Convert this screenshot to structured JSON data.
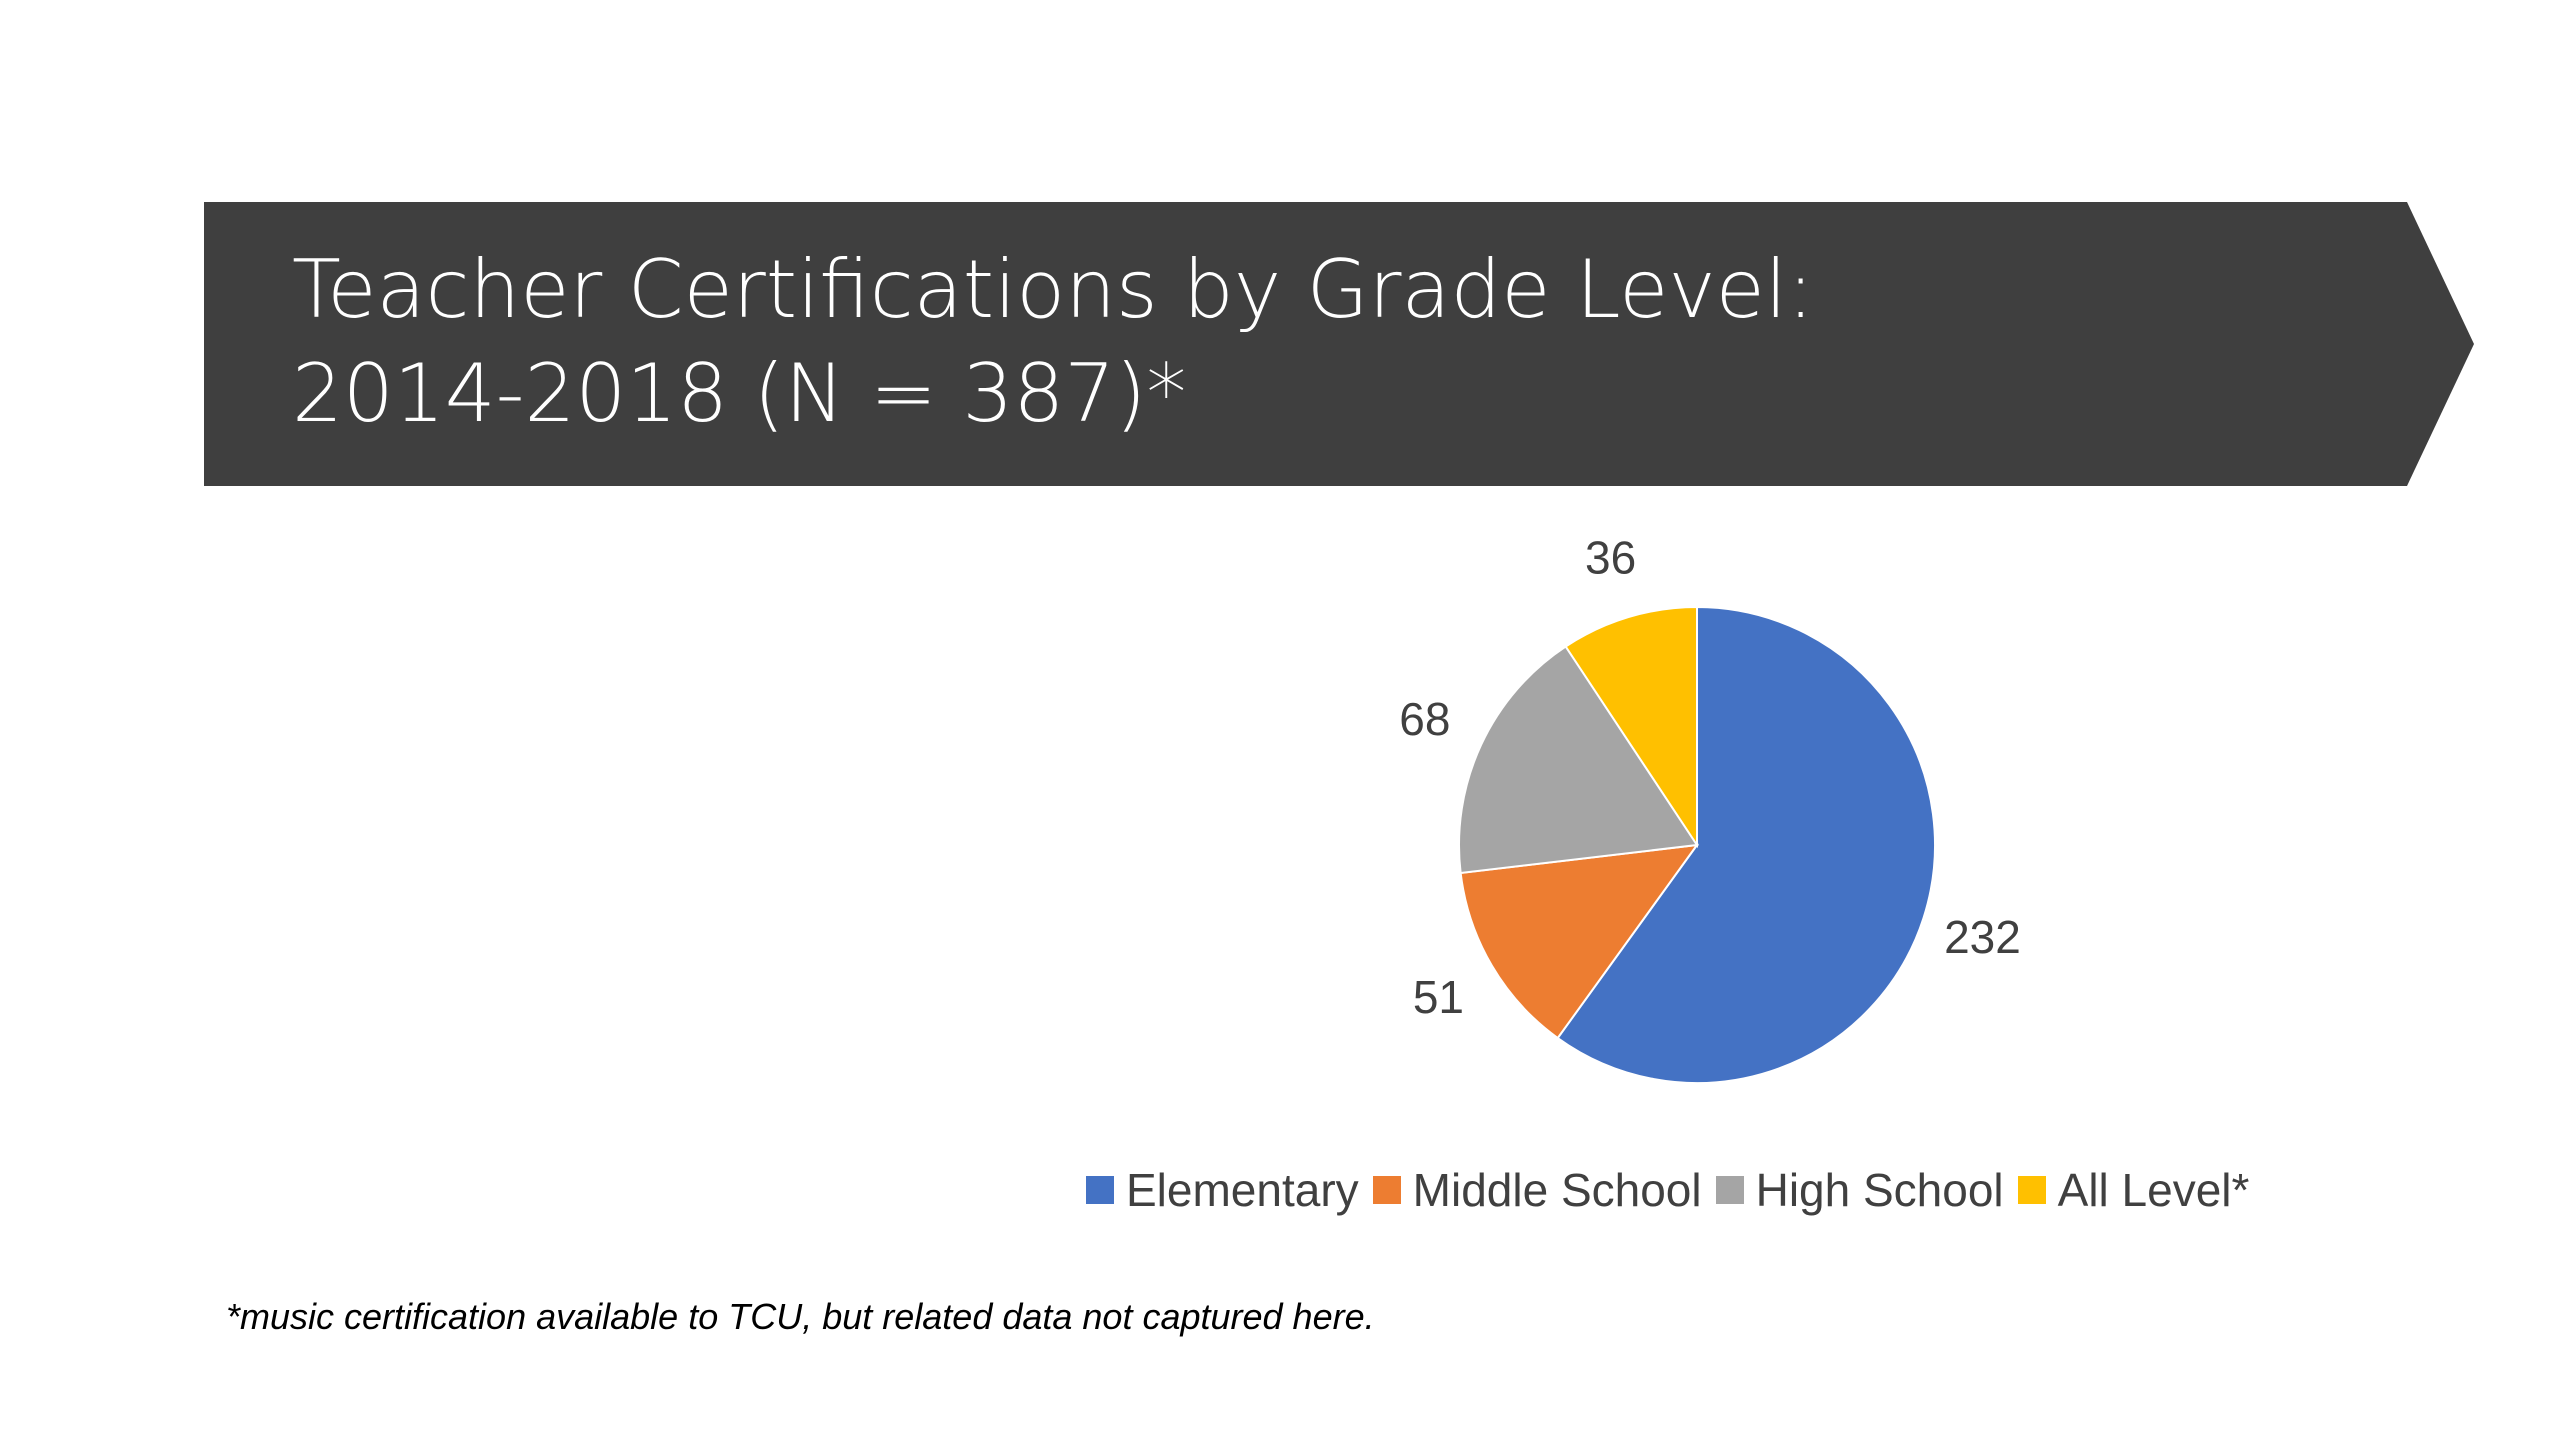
{
  "slide": {
    "title_line1": "Teacher Certifications by Grade Level:",
    "title_line2": "2014-2018 (N = 387)*",
    "footnote": "*music certification available to TCU, but related data not captured here."
  },
  "colors": {
    "banner": "#3f3f3f",
    "elementary": "#4472c4",
    "middle_school": "#ed7d31",
    "high_school": "#a5a5a5",
    "all_level": "#ffc000"
  },
  "chart_data": {
    "type": "pie",
    "title": "",
    "categories": [
      "Elementary",
      "Middle School",
      "High School",
      "All Level*"
    ],
    "values": [
      232,
      51,
      68,
      36
    ],
    "data_labels": [
      "232",
      "51",
      "68",
      "36"
    ],
    "colors": [
      "#4472c4",
      "#ed7d31",
      "#a5a5a5",
      "#ffc000"
    ],
    "start_angle": "12 o'clock",
    "direction": "clockwise",
    "legend": "bottom"
  }
}
